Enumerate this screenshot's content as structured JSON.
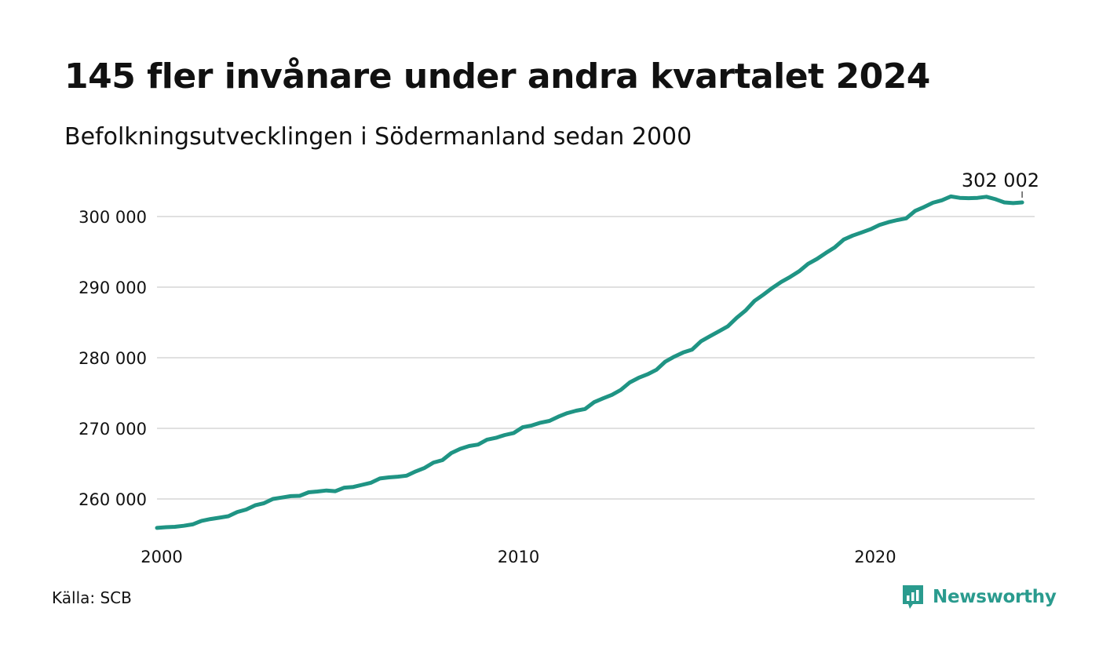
{
  "header": {
    "title": "145 fler invånare under andra kvartalet 2024",
    "subtitle": "Befolkningsutvecklingen i Södermanland sedan 2000"
  },
  "footer": {
    "source": "Källa: SCB",
    "brand": "Newsworthy",
    "brand_icon": "newsworthy-logo-icon"
  },
  "colors": {
    "line": "#1f9484",
    "grid": "#e0e0e0",
    "brand": "#2a9b8e",
    "text": "#111111"
  },
  "chart_data": {
    "type": "line",
    "title": "145 fler invånare under andra kvartalet 2024",
    "subtitle": "Befolkningsutvecklingen i Södermanland sedan 2000",
    "xlabel": "",
    "ylabel": "",
    "x_ticks": [
      2000,
      2010,
      2020
    ],
    "x_tick_labels": [
      "2000",
      "2010",
      "2020"
    ],
    "y_ticks": [
      260000,
      270000,
      280000,
      290000,
      300000
    ],
    "y_tick_labels": [
      "260 000",
      "270 000",
      "280 000",
      "290 000",
      "300 000"
    ],
    "xlim": [
      2000,
      2024.6
    ],
    "ylim": [
      254000,
      304000
    ],
    "grid": true,
    "legend": "none",
    "annotation": {
      "label": "302 002",
      "x": 2024.25,
      "y": 302002
    },
    "series": [
      {
        "x": [
          2000.0,
          2000.25,
          2000.5,
          2000.75,
          2001.0,
          2001.25,
          2001.5,
          2001.75,
          2002.0,
          2002.25,
          2002.5,
          2002.75,
          2003.0,
          2003.25,
          2003.5,
          2003.75,
          2004.0,
          2004.25,
          2004.5,
          2004.75,
          2005.0,
          2005.25,
          2005.5,
          2005.75,
          2006.0,
          2006.25,
          2006.5,
          2006.75,
          2007.0,
          2007.25,
          2007.5,
          2007.75,
          2008.0,
          2008.25,
          2008.5,
          2008.75,
          2009.0,
          2009.25,
          2009.5,
          2009.75,
          2010.0,
          2010.25,
          2010.5,
          2010.75,
          2011.0,
          2011.25,
          2011.5,
          2011.75,
          2012.0,
          2012.25,
          2012.5,
          2012.75,
          2013.0,
          2013.25,
          2013.5,
          2013.75,
          2014.0,
          2014.25,
          2014.5,
          2014.75,
          2015.0,
          2015.25,
          2015.5,
          2015.75,
          2016.0,
          2016.25,
          2016.5,
          2016.75,
          2017.0,
          2017.25,
          2017.5,
          2017.75,
          2018.0,
          2018.25,
          2018.5,
          2018.75,
          2019.0,
          2019.25,
          2019.5,
          2019.75,
          2020.0,
          2020.25,
          2020.5,
          2020.75,
          2021.0,
          2021.25,
          2021.5,
          2021.75,
          2022.0,
          2022.25,
          2022.5,
          2022.75,
          2023.0,
          2023.25,
          2023.5,
          2023.75,
          2024.0,
          2024.25
        ],
        "values": [
          255900,
          256000,
          256050,
          256200,
          256400,
          256900,
          257150,
          257350,
          257550,
          258150,
          258500,
          259100,
          259400,
          260000,
          260200,
          260400,
          260450,
          260950,
          261050,
          261200,
          261100,
          261600,
          261700,
          262000,
          262300,
          262900,
          263050,
          263150,
          263300,
          263900,
          264400,
          265150,
          265500,
          266500,
          267100,
          267500,
          267700,
          268400,
          268650,
          269050,
          269350,
          270150,
          270400,
          270800,
          271050,
          271650,
          272150,
          272500,
          272750,
          273700,
          274250,
          274750,
          275450,
          276500,
          277150,
          277650,
          278300,
          279450,
          280150,
          280750,
          281150,
          282350,
          283050,
          283750,
          284450,
          285650,
          286700,
          288050,
          288950,
          289900,
          290750,
          291450,
          292250,
          293300,
          294000,
          294850,
          295650,
          296750,
          297300,
          297750,
          298200,
          298800,
          299200,
          299500,
          299750,
          300800,
          301350,
          301950,
          302300,
          302850,
          302650,
          302600,
          302650,
          302800,
          302450,
          302000,
          301900,
          302002
        ]
      }
    ]
  }
}
